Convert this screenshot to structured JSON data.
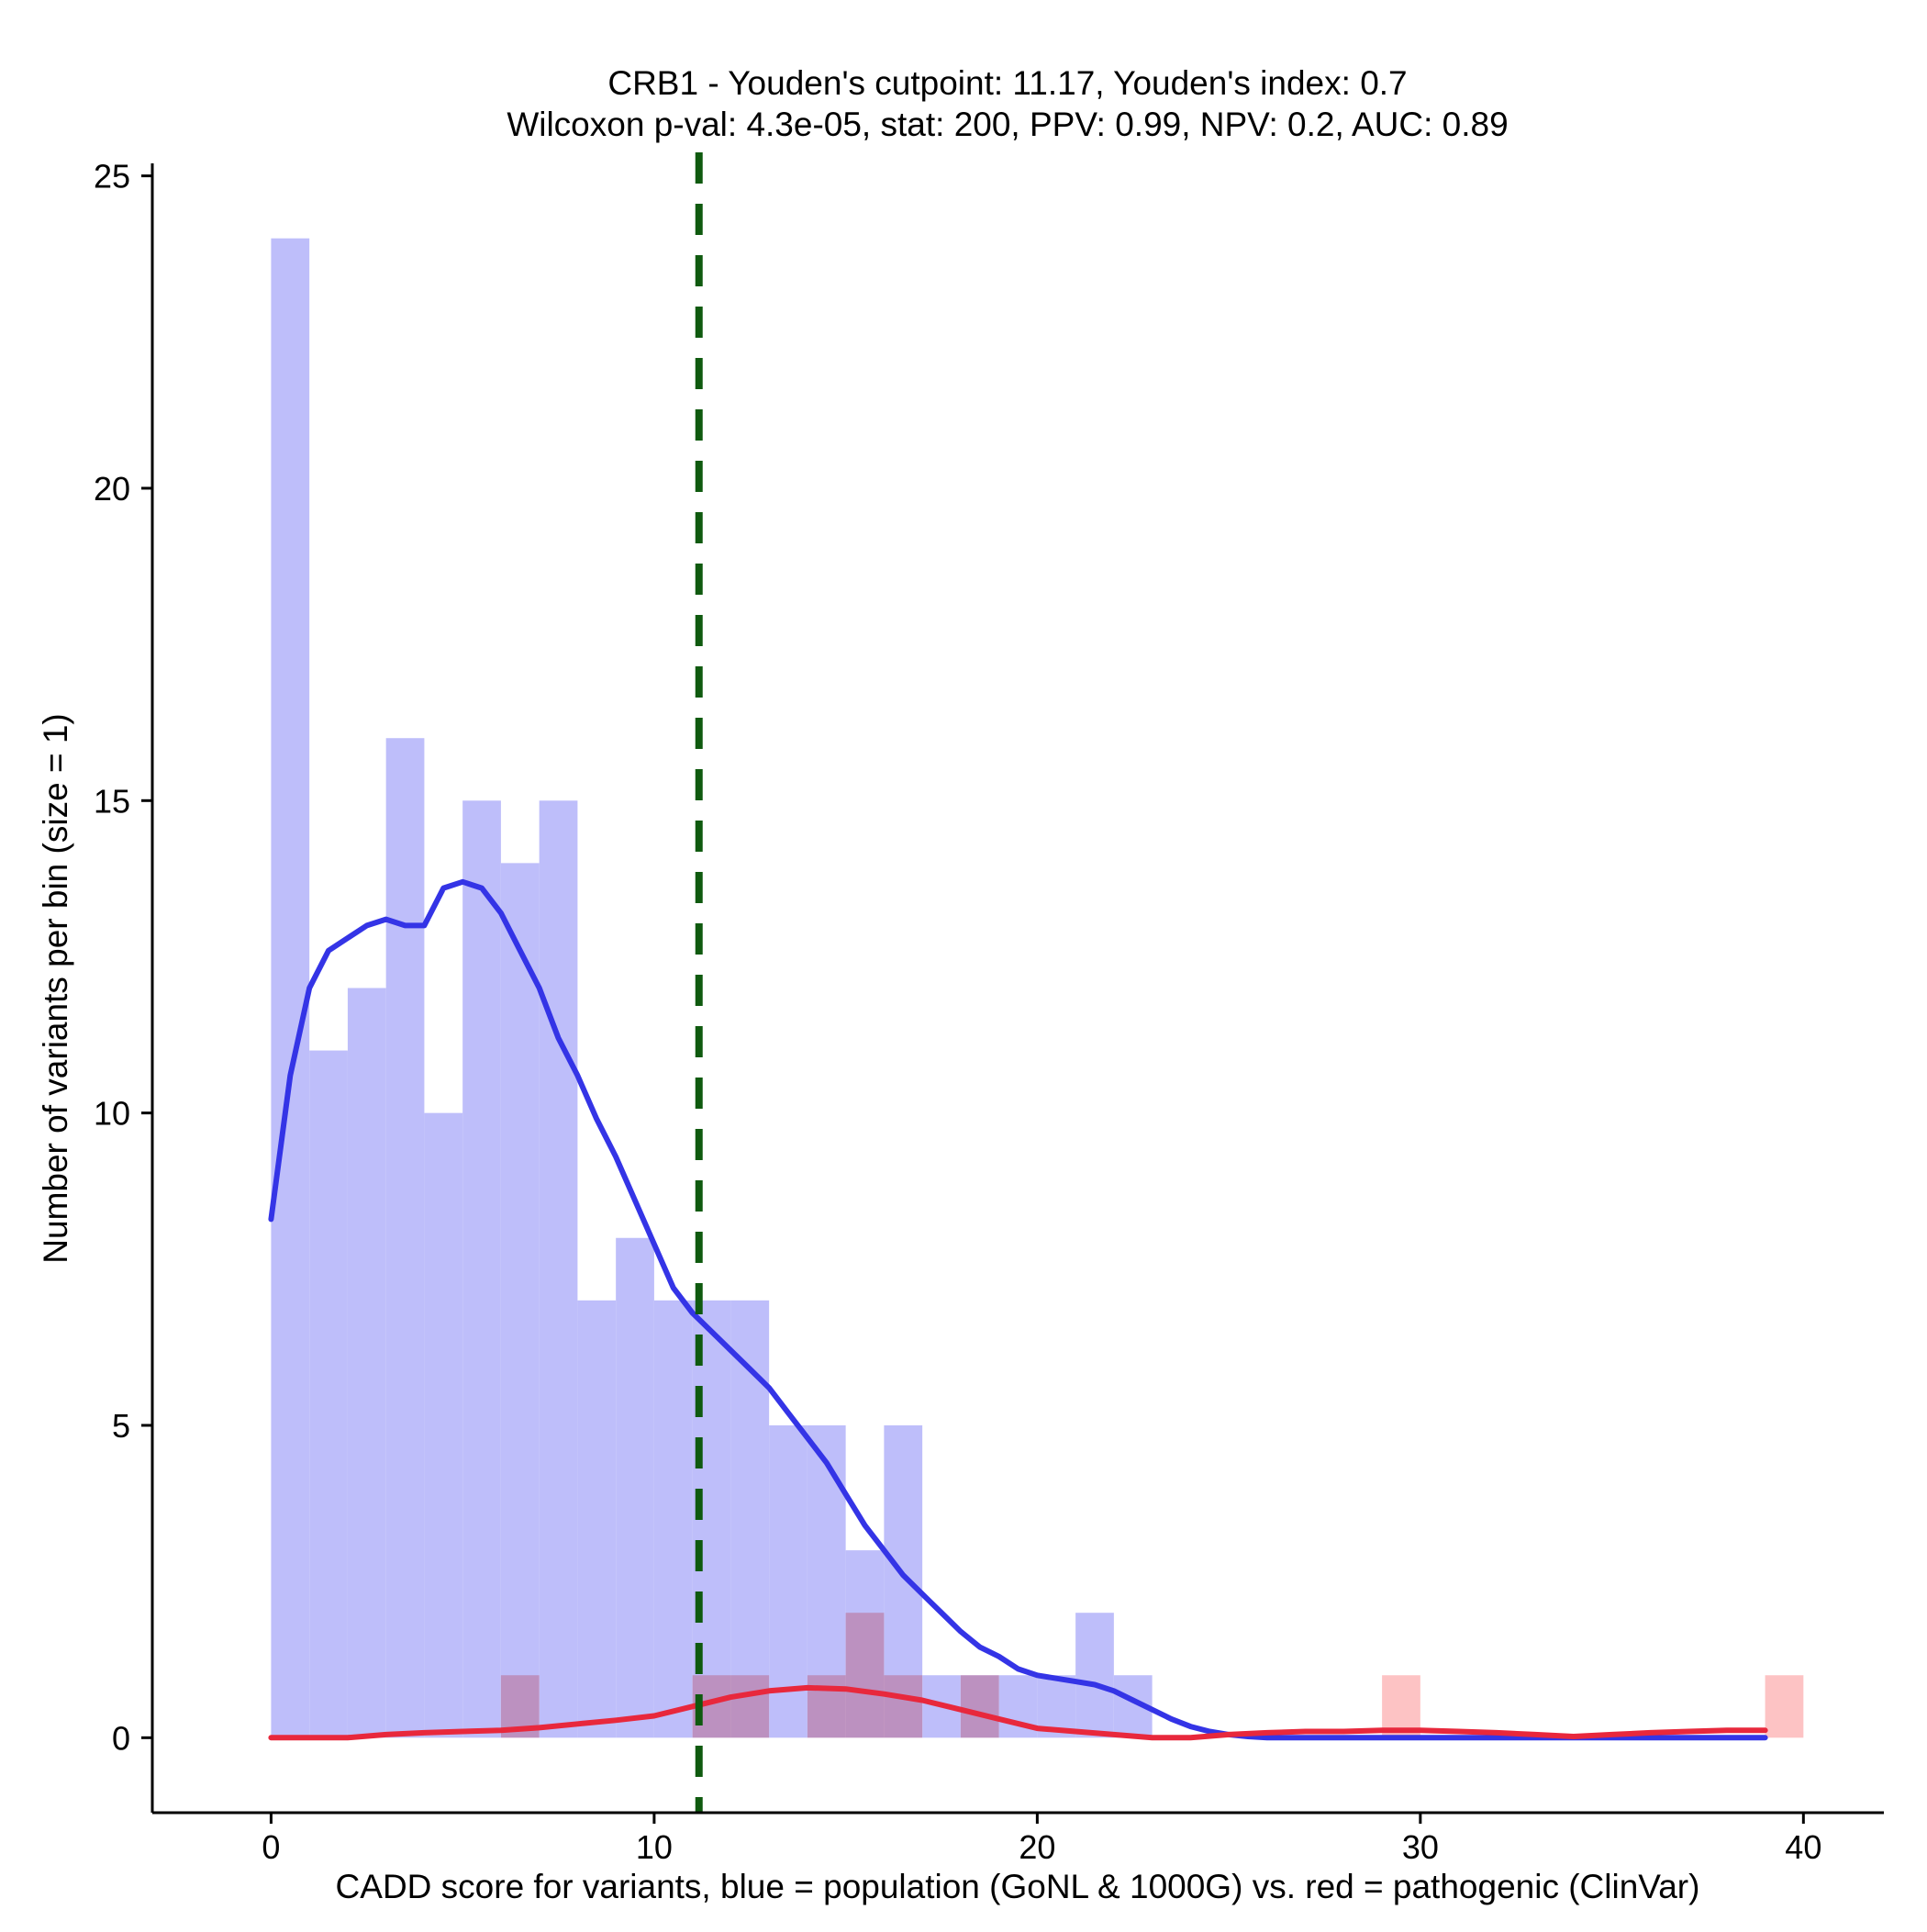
{
  "chart_data": {
    "type": "bar",
    "title_line1": "CRB1 - Youden's cutpoint: 11.17, Youden's index: 0.7",
    "title_line2": "Wilcoxon p-val: 4.3e-05, stat: 200, PPV: 0.99, NPV: 0.2, AUC: 0.89",
    "xlabel": "CADD score for variants, blue = population (GoNL & 1000G) vs. red = pathogenic (ClinVar)",
    "ylabel": "Number of variants per bin (size = 1)",
    "xlim": [
      -3.1,
      42.1
    ],
    "ylim": [
      -1.2,
      25.2
    ],
    "x_ticks": [
      0,
      10,
      20,
      30,
      40
    ],
    "x_tick_labels": [
      "0",
      "10",
      "20",
      "30",
      "40"
    ],
    "y_ticks": [
      0,
      5,
      10,
      15,
      20,
      25
    ],
    "y_tick_labels": [
      "0",
      "5",
      "10",
      "15",
      "20",
      "25"
    ],
    "bin_size": 1,
    "cutpoint": 11.17,
    "series": [
      {
        "name": "population (GoNL & 1000G)",
        "color": "#3434e6",
        "bar_color": "#bebefa",
        "bins": [
          [
            0,
            24
          ],
          [
            1,
            11
          ],
          [
            2,
            12
          ],
          [
            3,
            16
          ],
          [
            4,
            10
          ],
          [
            5,
            15
          ],
          [
            6,
            14
          ],
          [
            7,
            15
          ],
          [
            8,
            7
          ],
          [
            9,
            8
          ],
          [
            10,
            7
          ],
          [
            11,
            7
          ],
          [
            12,
            7
          ],
          [
            13,
            5
          ],
          [
            14,
            5
          ],
          [
            15,
            3
          ],
          [
            16,
            5
          ],
          [
            17,
            1
          ],
          [
            18,
            1
          ],
          [
            19,
            1
          ],
          [
            20,
            1
          ],
          [
            21,
            2
          ],
          [
            22,
            1
          ]
        ],
        "density_curve": [
          [
            0,
            8.3
          ],
          [
            0.5,
            10.6
          ],
          [
            1,
            12.0
          ],
          [
            1.5,
            12.6
          ],
          [
            2,
            12.8
          ],
          [
            2.5,
            13.0
          ],
          [
            3,
            13.1
          ],
          [
            3.5,
            13.0
          ],
          [
            4,
            13.0
          ],
          [
            4.5,
            13.6
          ],
          [
            5,
            13.7
          ],
          [
            5.5,
            13.6
          ],
          [
            6,
            13.2
          ],
          [
            6.5,
            12.6
          ],
          [
            7,
            12.0
          ],
          [
            7.5,
            11.2
          ],
          [
            8,
            10.6
          ],
          [
            8.5,
            9.9
          ],
          [
            9,
            9.3
          ],
          [
            9.5,
            8.6
          ],
          [
            10,
            7.9
          ],
          [
            10.5,
            7.2
          ],
          [
            11,
            6.8
          ],
          [
            11.5,
            6.5
          ],
          [
            12,
            6.2
          ],
          [
            12.5,
            5.9
          ],
          [
            13,
            5.6
          ],
          [
            13.5,
            5.2
          ],
          [
            14,
            4.8
          ],
          [
            14.5,
            4.4
          ],
          [
            15,
            3.9
          ],
          [
            15.5,
            3.4
          ],
          [
            16,
            3.0
          ],
          [
            16.5,
            2.6
          ],
          [
            17,
            2.3
          ],
          [
            17.5,
            2.0
          ],
          [
            18,
            1.7
          ],
          [
            18.5,
            1.45
          ],
          [
            19,
            1.3
          ],
          [
            19.5,
            1.1
          ],
          [
            20,
            1.0
          ],
          [
            20.5,
            0.95
          ],
          [
            21,
            0.9
          ],
          [
            21.5,
            0.85
          ],
          [
            22,
            0.75
          ],
          [
            22.5,
            0.6
          ],
          [
            23,
            0.45
          ],
          [
            23.5,
            0.3
          ],
          [
            24,
            0.18
          ],
          [
            24.5,
            0.1
          ],
          [
            25,
            0.05
          ],
          [
            25.5,
            0.02
          ],
          [
            26,
            0
          ],
          [
            27,
            0
          ],
          [
            28,
            0
          ],
          [
            29,
            0
          ],
          [
            30,
            0
          ],
          [
            31,
            0
          ],
          [
            32,
            0
          ],
          [
            33,
            0
          ],
          [
            34,
            0
          ],
          [
            35,
            0
          ],
          [
            36,
            0
          ],
          [
            37,
            0
          ],
          [
            38,
            0
          ],
          [
            39,
            0
          ]
        ]
      },
      {
        "name": "pathogenic (ClinVar)",
        "color": "#e8283c",
        "bar_color": "#fdbcbe",
        "bins": [
          [
            6,
            1
          ],
          [
            11,
            1
          ],
          [
            12,
            1
          ],
          [
            14,
            1
          ],
          [
            15,
            2
          ],
          [
            16,
            1
          ],
          [
            18,
            1
          ],
          [
            29,
            1
          ],
          [
            39,
            1
          ]
        ],
        "density_curve": [
          [
            0,
            0
          ],
          [
            1,
            0
          ],
          [
            2,
            0
          ],
          [
            3,
            0.05
          ],
          [
            4,
            0.08
          ],
          [
            5,
            0.1
          ],
          [
            6,
            0.12
          ],
          [
            7,
            0.16
          ],
          [
            8,
            0.22
          ],
          [
            9,
            0.28
          ],
          [
            10,
            0.35
          ],
          [
            11,
            0.5
          ],
          [
            12,
            0.65
          ],
          [
            13,
            0.75
          ],
          [
            14,
            0.8
          ],
          [
            15,
            0.78
          ],
          [
            16,
            0.7
          ],
          [
            17,
            0.6
          ],
          [
            18,
            0.45
          ],
          [
            19,
            0.3
          ],
          [
            20,
            0.15
          ],
          [
            21,
            0.1
          ],
          [
            22,
            0.05
          ],
          [
            23,
            0
          ],
          [
            24,
            0
          ],
          [
            25,
            0.05
          ],
          [
            26,
            0.08
          ],
          [
            27,
            0.1
          ],
          [
            28,
            0.1
          ],
          [
            29,
            0.12
          ],
          [
            30,
            0.12
          ],
          [
            31,
            0.1
          ],
          [
            32,
            0.08
          ],
          [
            33,
            0.05
          ],
          [
            34,
            0.02
          ],
          [
            35,
            0.05
          ],
          [
            36,
            0.08
          ],
          [
            37,
            0.1
          ],
          [
            38,
            0.12
          ],
          [
            39,
            0.12
          ]
        ]
      }
    ],
    "cutpoint_color": "#0f5a0f",
    "grid": false,
    "legend": "none"
  }
}
